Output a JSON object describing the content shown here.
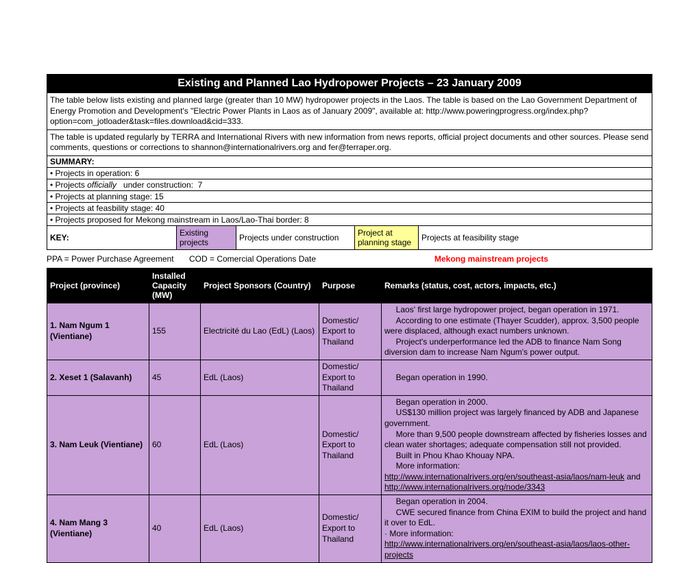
{
  "title": "Existing and Planned Lao Hydropower Projects – 23 January 2009",
  "intro": {
    "para1": "The table below lists existing and planned large (greater than 10 MW) hydropower projects in the Laos. The table is based on the Lao Government Department of Energy Promotion and Development's \"Electric Power Plants in Laos as of January 2009\", available at: http://www.poweringprogress.org/index.php?option=com_jotloader&task=files.download&cid=333.",
    "para2": "The table is updated regularly by TERRA and International Rivers with new information from news reports, official project documents and other sources. Please send comments, questions or corrections to shannon@internationalrivers.org and fer@terraper.org."
  },
  "summary": {
    "heading": "SUMMARY:",
    "lines": [
      "• Projects in operation:  6",
      "• Projects officially   under construction:  7",
      "• Projects at planning stage: 15",
      "• Projects at feasbility stage: 40",
      "• Projects proposed for Mekong mainstream in Laos/Lao-Thai border: 8"
    ]
  },
  "key": {
    "label": "KEY:",
    "existing": "Existing projects",
    "under_construction": "Projects under construction",
    "planning": "Project at planning stage",
    "feasibility": "Projects at feasibility stage"
  },
  "defs": {
    "ppa": "PPA = Power Purchase Agreement",
    "cod": "COD = Comercial Operations Date",
    "mekong": "Mekong mainstream projects"
  },
  "columns": {
    "project": "Project (province)",
    "capacity": "Installed Capacity (MW)",
    "sponsor": "Project Sponsors (Country)",
    "purpose": "Purpose",
    "remarks": "Remarks (status, cost, actors, impacts, etc.)"
  },
  "rows": [
    {
      "project": "1. Nam Ngum 1 (Vientiane)",
      "capacity": "155",
      "sponsor": "Electricité du Lao (EdL) (Laos)",
      "purpose": "Domestic/ Export to Thailand",
      "remarks_html": "&nbsp;&nbsp;&nbsp;&nbsp;&nbsp;Laos' first large hydropower project, began operation in 1971.<br>&nbsp;&nbsp;&nbsp;&nbsp;&nbsp;According to one estimate (Thayer Scudder), approx. 3,500 people were displaced, although exact numbers unknown.<br>&nbsp;&nbsp;&nbsp;&nbsp;&nbsp;Project's underperformance led the ADB to finance Nam Song diversion dam to increase Nam Ngum's power output."
    },
    {
      "project": "2. Xeset 1 (Salavanh)",
      "capacity": "45",
      "sponsor": "EdL (Laos)",
      "purpose": "Domestic/ Export to Thailand",
      "remarks_html": "&nbsp;&nbsp;&nbsp;&nbsp;&nbsp;Began operation in 1990."
    },
    {
      "project": "3. Nam Leuk (Vientiane)",
      "capacity": "60",
      "sponsor": "EdL (Laos)",
      "purpose": "Domestic/ Export to Thailand",
      "remarks_html": "&nbsp;&nbsp;&nbsp;&nbsp;&nbsp;Began operation in 2000.<br>&nbsp;&nbsp;&nbsp;&nbsp;&nbsp;US$130 million project was largely financed by ADB and Japanese government.<br>&nbsp;&nbsp;&nbsp;&nbsp;&nbsp;More than 9,500 people downstream affected by fisheries losses and clean water shortages; adequate compensation still not provided.<br>&nbsp;&nbsp;&nbsp;&nbsp;&nbsp;Built in Phou Khao Khouay NPA.<br>&nbsp;&nbsp;&nbsp;&nbsp;&nbsp;More information:<br><span class='underline'>http://www.internationalrivers.org/en/southeast-asia/laos/nam-leuk</span> and <span class='underline'>http://www.internationalrivers.org/node/3343</span>"
    },
    {
      "project": "4. Nam Mang 3 (Vientiane)",
      "capacity": "40",
      "sponsor": "EdL (Laos)",
      "purpose": "Domestic/ Export to Thailand",
      "remarks_html": "&nbsp;&nbsp;&nbsp;&nbsp;&nbsp;Began operation in 2004.<br>&nbsp;&nbsp;&nbsp;&nbsp;&nbsp;CWE secured finance from China EXIM to build the project and hand it over to EdL.<br>· More information:<br><span class='underline'>http://www.internationalrivers.org/en/southeast-asia/laos/laos-other-projects</span>"
    }
  ],
  "colors": {
    "title_bg": "#000000",
    "title_fg": "#ffffff",
    "existing_bg": "#c8a2d8",
    "planning_bg": "#ffff99",
    "mekong_fg": "#ff0000",
    "border": "#000000"
  }
}
